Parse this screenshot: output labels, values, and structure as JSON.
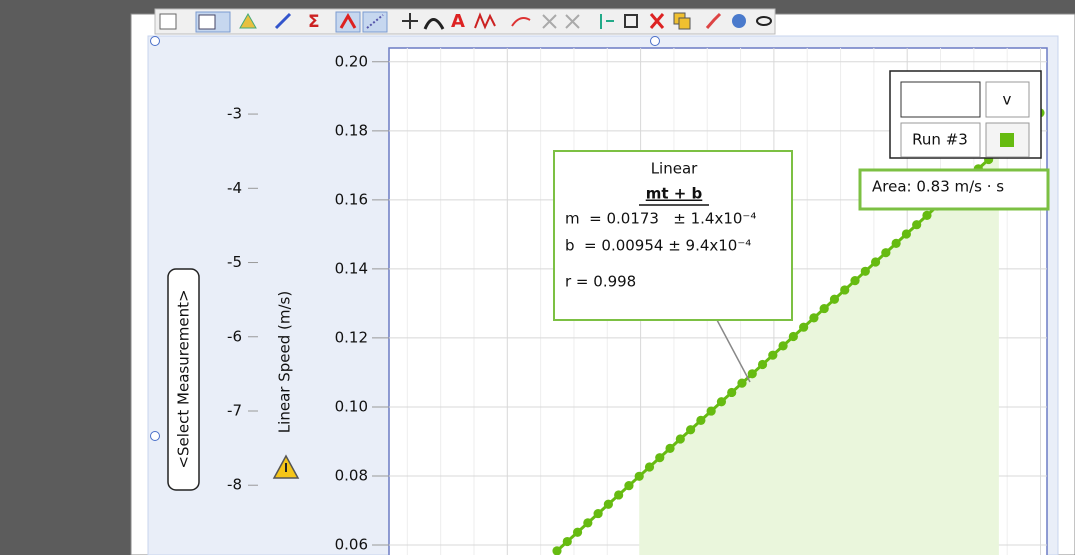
{
  "chart_data": {
    "type": "line",
    "y_label": "Linear Speed (m/s)",
    "y2_label": "<Select Measurement>",
    "ylim": [
      0.0571,
      0.204
    ],
    "yticks": [
      0.06,
      0.08,
      {
        "value": 0.1,
        "label": "0.10"
      },
      0.12,
      0.14,
      0.16,
      0.18,
      {
        "value": 0.2,
        "label": "0.20"
      }
    ],
    "y2lim": [
      -8.94,
      -2.11
    ],
    "y2ticks": [
      -8,
      -7,
      -6,
      -5,
      -4,
      -3
    ],
    "grid": true,
    "series": [
      {
        "name": "v",
        "run": "Run #3",
        "color": "#66bb11",
        "values": [
          0.0583,
          0.061,
          0.0637,
          0.0664,
          0.0691,
          0.0718,
          0.0745,
          0.0772,
          0.0799,
          0.0826,
          0.0853,
          0.088,
          0.0907,
          0.0934,
          0.0961,
          0.0988,
          0.1015,
          0.1042,
          0.1069,
          0.1096,
          0.1123,
          0.115,
          0.1177,
          0.1204,
          0.1231,
          0.1258,
          0.1285,
          0.1312,
          0.1339,
          0.1366,
          0.1393,
          0.142,
          0.1447,
          0.1474,
          0.1501,
          0.1528,
          0.1555,
          0.1582,
          0.1609,
          0.1636,
          0.1663,
          0.169,
          0.1717,
          0.1744,
          0.1771,
          0.1798,
          0.1825,
          0.1852
        ]
      }
    ],
    "fit": {
      "title": "Linear",
      "equation": "mt + b",
      "m_line": "m  = 0.0173   ± 1.4x10⁻⁴",
      "b_line": "b  = 0.00954 ± 9.4x10⁻⁴",
      "r_line": "r = 0.998"
    },
    "area_label": "Area: 0.83 m/s · s"
  }
}
